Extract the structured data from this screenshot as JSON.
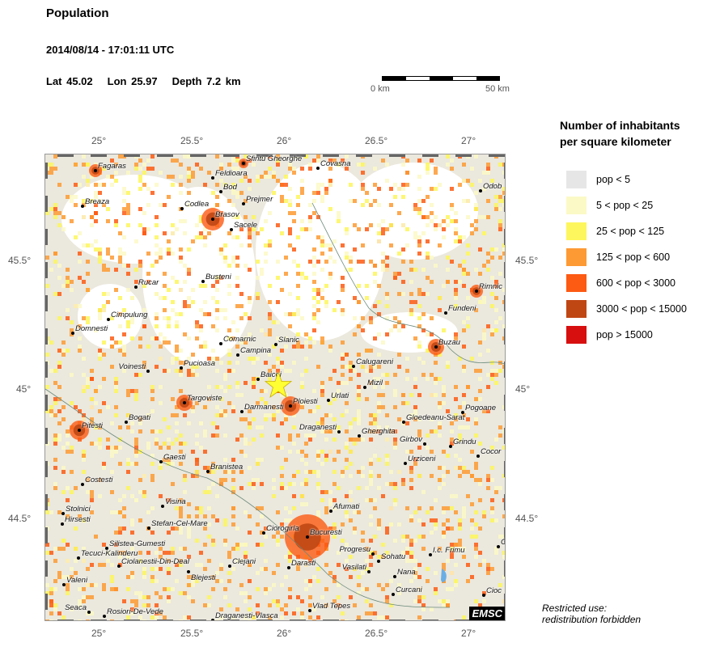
{
  "header": {
    "title": "Population",
    "datetime": "2014/08/14 - 17:01:11 UTC",
    "lat": "Lat 45.02",
    "lon": "Lon  25.97",
    "depth": "Depth  7.2 km"
  },
  "scale": {
    "start": "0 km",
    "end": "50 km"
  },
  "axes": {
    "lon_ticks": [
      "25°",
      "25.5°",
      "26°",
      "26.5°",
      "27°"
    ],
    "lat_ticks": [
      "45.5°",
      "45°",
      "44.5°"
    ]
  },
  "epicenter": {
    "lat": 45.02,
    "lon": 25.97,
    "color": "#ffff33"
  },
  "cities": [
    "Fagaras",
    "Sfintu Gheorghe",
    "Covasna",
    "Feldioara",
    "Bod",
    "Prejmer",
    "Breaza",
    "Codlea",
    "Brasov",
    "Sacele",
    "Odob",
    "Rimnic",
    "Busteni",
    "Rucar",
    "Cimpulung",
    "Domnesti",
    "Comarnic",
    "Slanic",
    "Fundeni",
    "Buzau",
    "Campina",
    "Calugareni",
    "Voinesti",
    "Pucioasa",
    "Baicoi",
    "Mizil",
    "Urlati",
    "Targoviste",
    "Darmanesti",
    "Ploiesti",
    "Pogoane",
    "Pitesti",
    "Bogati",
    "Gloedeanu-Sarat",
    "Draganesti",
    "Gherghita",
    "Girbov",
    "Grindu",
    "Cocor",
    "Gaesti",
    "Urziceni",
    "Costesti",
    "Branistea",
    "Visina",
    "Stolnici",
    "Hirsesti",
    "Afumati",
    "Stefan-Cel-Mare",
    "Ciorogirla",
    "Bucuresti",
    "Silistea-Gumesti",
    "Tecuci-Kalinderu",
    "Progresu",
    "Sohatu",
    "I.c. Frimu",
    "C",
    "Ciolanestii-Din-Deal",
    "Blejesti",
    "Clejani",
    "Darasti",
    "Vasilati",
    "Nana",
    "Valeni",
    "Curcani",
    "Cioc",
    "Seaca",
    "Rosiori-De-Vede",
    "Draganesti-Vlasca",
    "Vlad Tepes"
  ],
  "logo": "EMSC",
  "legend": {
    "title_line1": "Number of inhabitants",
    "title_line2": "per square kilometer",
    "items": [
      {
        "label": "pop < 5",
        "color": "#e6e6e6"
      },
      {
        "label": "5 < pop < 25",
        "color": "#fbf9c6"
      },
      {
        "label": "25 < pop < 125",
        "color": "#fdf65c"
      },
      {
        "label": "125 < pop < 600",
        "color": "#fd9a33"
      },
      {
        "label": "600 < pop < 3000",
        "color": "#fd5a13"
      },
      {
        "label": "3000 < pop < 15000",
        "color": "#bf4714"
      },
      {
        "label": "pop > 15000",
        "color": "#d70f0f"
      }
    ]
  },
  "notice": {
    "line1": "Restricted use:",
    "line2": "redistribution forbidden"
  }
}
